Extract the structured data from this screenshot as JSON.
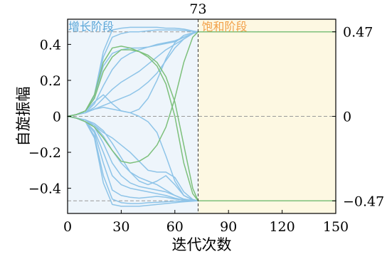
{
  "chart_data": {
    "type": "line",
    "xlabel": "迭代次数",
    "ylabel": "自旋振幅",
    "xlim": [
      0,
      150
    ],
    "ylim": [
      -0.54,
      0.54
    ],
    "xticks": [
      0,
      30,
      60,
      90,
      120,
      150
    ],
    "xtick_labels": [
      "0",
      "30",
      "60",
      "90",
      "120",
      "150"
    ],
    "yticks": [
      0.4,
      0.2,
      0,
      -0.2,
      -0.4
    ],
    "ytick_labels": [
      "0.4",
      "0.2",
      "0",
      "−0.2",
      "−0.4"
    ],
    "right_ticks": [
      0.47,
      0,
      -0.47
    ],
    "right_tick_labels": [
      "0.47",
      "0",
      "−0.47"
    ],
    "hlines": [
      0.47,
      0,
      -0.47
    ],
    "vline": {
      "x": 73,
      "label": "73"
    },
    "phases": [
      {
        "name": "增长阶段",
        "x_range": [
          0,
          73
        ],
        "color": "#eef5fb",
        "text_color": "#5aa6d8"
      },
      {
        "name": "饱和阶段",
        "x_range": [
          73,
          150
        ],
        "color": "#fdf8e2",
        "text_color": "#f2a048"
      }
    ],
    "colors": {
      "blue": "#8ec4e8",
      "green": "#7dc07b"
    },
    "series_x": [
      0,
      5,
      10,
      15,
      20,
      25,
      30,
      35,
      40,
      45,
      50,
      55,
      60,
      65,
      70,
      73,
      80,
      90,
      100,
      110,
      120,
      130,
      140,
      150
    ],
    "series": [
      {
        "color": "blue",
        "values": [
          0,
          0.01,
          0.03,
          0.12,
          0.36,
          0.48,
          0.49,
          0.495,
          0.495,
          0.495,
          0.495,
          0.49,
          0.49,
          0.485,
          0.475,
          0.47,
          0.47,
          0.47,
          0.47,
          0.47,
          0.47,
          0.47,
          0.47,
          0.47
        ]
      },
      {
        "color": "blue",
        "values": [
          0,
          0.01,
          0.03,
          0.11,
          0.33,
          0.44,
          0.46,
          0.47,
          0.47,
          0.475,
          0.48,
          0.48,
          0.48,
          0.478,
          0.472,
          0.47,
          0.47,
          0.47,
          0.47,
          0.47,
          0.47,
          0.47,
          0.47,
          0.47
        ]
      },
      {
        "color": "blue",
        "values": [
          0,
          0.01,
          0.03,
          0.1,
          0.28,
          0.35,
          0.37,
          0.38,
          0.38,
          0.385,
          0.4,
          0.41,
          0.42,
          0.44,
          0.46,
          0.47,
          0.47,
          0.47,
          0.47,
          0.47,
          0.47,
          0.47,
          0.47,
          0.47
        ]
      },
      {
        "color": "blue",
        "values": [
          0,
          0.01,
          0.02,
          0.07,
          0.17,
          0.26,
          0.32,
          0.35,
          0.37,
          0.385,
          0.395,
          0.405,
          0.415,
          0.44,
          0.46,
          0.47,
          0.47,
          0.47,
          0.47,
          0.47,
          0.47,
          0.47,
          0.47,
          0.47
        ]
      },
      {
        "color": "blue",
        "values": [
          0,
          0.01,
          0.02,
          0.05,
          0.1,
          0.15,
          0.19,
          0.22,
          0.25,
          0.29,
          0.33,
          0.37,
          0.4,
          0.43,
          0.46,
          0.47,
          0.47,
          0.47,
          0.47,
          0.47,
          0.47,
          0.47,
          0.47,
          0.47
        ]
      },
      {
        "color": "blue",
        "values": [
          0,
          0.01,
          0.02,
          0.04,
          0.06,
          0.08,
          0.1,
          0.12,
          0.15,
          0.19,
          0.24,
          0.31,
          0.38,
          0.43,
          0.46,
          0.47,
          0.47,
          0.47,
          0.47,
          0.47,
          0.47,
          0.47,
          0.47,
          0.47
        ]
      },
      {
        "color": "blue",
        "values": [
          0,
          0.01,
          0.02,
          0.04,
          0.05,
          0.04,
          0.03,
          0.02,
          0.0,
          -0.03,
          -0.09,
          -0.22,
          -0.36,
          -0.44,
          -0.465,
          -0.47,
          -0.47,
          -0.47,
          -0.47,
          -0.47,
          -0.47,
          -0.47,
          -0.47,
          -0.47
        ]
      },
      {
        "color": "blue",
        "values": [
          0,
          0.01,
          0.03,
          0.08,
          0.12,
          0.07,
          0.03,
          0.02,
          0.04,
          0.1,
          0.2,
          0.32,
          0.41,
          0.45,
          0.465,
          0.47,
          0.47,
          0.47,
          0.47,
          0.47,
          0.47,
          0.47,
          0.47,
          0.47
        ]
      },
      {
        "color": "blue",
        "values": [
          0,
          -0.01,
          -0.03,
          -0.12,
          -0.37,
          -0.49,
          -0.5,
          -0.5,
          -0.5,
          -0.495,
          -0.49,
          -0.485,
          -0.48,
          -0.475,
          -0.472,
          -0.47,
          -0.47,
          -0.47,
          -0.47,
          -0.47,
          -0.47,
          -0.47,
          -0.47,
          -0.47
        ]
      },
      {
        "color": "blue",
        "values": [
          0,
          -0.01,
          -0.03,
          -0.11,
          -0.33,
          -0.46,
          -0.48,
          -0.485,
          -0.485,
          -0.48,
          -0.478,
          -0.475,
          -0.472,
          -0.471,
          -0.47,
          -0.47,
          -0.47,
          -0.47,
          -0.47,
          -0.47,
          -0.47,
          -0.47,
          -0.47,
          -0.47
        ]
      },
      {
        "color": "blue",
        "values": [
          0,
          -0.01,
          -0.03,
          -0.09,
          -0.26,
          -0.41,
          -0.44,
          -0.45,
          -0.455,
          -0.45,
          -0.445,
          -0.45,
          -0.46,
          -0.465,
          -0.47,
          -0.47,
          -0.47,
          -0.47,
          -0.47,
          -0.47,
          -0.47,
          -0.47,
          -0.47,
          -0.47
        ]
      },
      {
        "color": "blue",
        "values": [
          0,
          -0.01,
          -0.03,
          -0.08,
          -0.2,
          -0.33,
          -0.38,
          -0.4,
          -0.41,
          -0.42,
          -0.43,
          -0.44,
          -0.455,
          -0.465,
          -0.47,
          -0.47,
          -0.47,
          -0.47,
          -0.47,
          -0.47,
          -0.47,
          -0.47,
          -0.47,
          -0.47
        ]
      },
      {
        "color": "blue",
        "values": [
          0,
          -0.01,
          -0.02,
          -0.06,
          -0.15,
          -0.26,
          -0.33,
          -0.37,
          -0.39,
          -0.4,
          -0.41,
          -0.42,
          -0.44,
          -0.46,
          -0.468,
          -0.47,
          -0.47,
          -0.47,
          -0.47,
          -0.47,
          -0.47,
          -0.47,
          -0.47,
          -0.47
        ]
      },
      {
        "color": "blue",
        "values": [
          0,
          -0.01,
          -0.02,
          -0.05,
          -0.11,
          -0.19,
          -0.26,
          -0.31,
          -0.34,
          -0.36,
          -0.38,
          -0.41,
          -0.44,
          -0.46,
          -0.468,
          -0.47,
          -0.47,
          -0.47,
          -0.47,
          -0.47,
          -0.47,
          -0.47,
          -0.47,
          -0.47
        ]
      },
      {
        "color": "blue",
        "values": [
          0,
          -0.01,
          -0.02,
          -0.04,
          -0.08,
          -0.15,
          -0.23,
          -0.31,
          -0.36,
          -0.38,
          -0.36,
          -0.33,
          -0.38,
          -0.44,
          -0.465,
          -0.47,
          -0.47,
          -0.47,
          -0.47,
          -0.47,
          -0.47,
          -0.47,
          -0.47,
          -0.47
        ]
      },
      {
        "color": "blue",
        "values": [
          0,
          -0.01,
          -0.02,
          -0.05,
          -0.09,
          -0.12,
          -0.16,
          -0.2,
          -0.25,
          -0.3,
          -0.31,
          -0.31,
          -0.34,
          -0.42,
          -0.462,
          -0.47,
          -0.47,
          -0.47,
          -0.47,
          -0.47,
          -0.47,
          -0.47,
          -0.47,
          -0.47
        ]
      },
      {
        "color": "green",
        "values": [
          0,
          0.01,
          0.03,
          0.1,
          0.25,
          0.33,
          0.37,
          0.37,
          0.36,
          0.34,
          0.3,
          0.22,
          0.08,
          -0.16,
          -0.4,
          -0.47,
          -0.47,
          -0.47,
          -0.47,
          -0.47,
          -0.47,
          -0.47,
          -0.47,
          -0.47
        ]
      },
      {
        "color": "green",
        "values": [
          0,
          0.01,
          0.03,
          0.12,
          0.3,
          0.38,
          0.39,
          0.38,
          0.36,
          0.33,
          0.28,
          0.18,
          0.0,
          -0.26,
          -0.43,
          -0.47,
          -0.47,
          -0.47,
          -0.47,
          -0.47,
          -0.47,
          -0.47,
          -0.47,
          -0.47
        ]
      },
      {
        "color": "green",
        "values": [
          0,
          -0.01,
          -0.03,
          -0.06,
          -0.12,
          -0.19,
          -0.25,
          -0.26,
          -0.25,
          -0.22,
          -0.16,
          -0.06,
          0.1,
          0.3,
          0.44,
          0.47,
          0.47,
          0.47,
          0.47,
          0.47,
          0.47,
          0.47,
          0.47,
          0.47
        ]
      }
    ]
  }
}
